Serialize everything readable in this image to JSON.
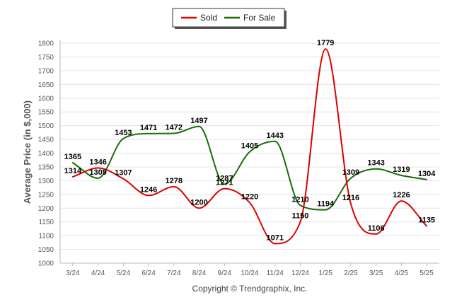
{
  "chart_data": {
    "type": "line",
    "categories": [
      "3/24",
      "4/24",
      "5/24",
      "6/24",
      "7/24",
      "8/24",
      "9/24",
      "10/24",
      "11/24",
      "12/24",
      "1/25",
      "2/25",
      "3/25",
      "4/25",
      "5/25"
    ],
    "series": [
      {
        "name": "Sold",
        "color": "#dd0000",
        "values": [
          1314,
          1346,
          1307,
          1246,
          1278,
          1200,
          1271,
          1220,
          1071,
          1150,
          1779,
          1216,
          1106,
          1226,
          1135
        ],
        "labels": [
          "1314",
          "1346",
          "1307",
          "1246",
          "1278",
          "1200",
          "1271",
          "1220",
          "1071",
          "1150",
          "1779",
          "1216",
          "1106",
          "1226",
          "1135"
        ]
      },
      {
        "name": "For Sale",
        "color": "#1a6b0a",
        "values": [
          1365,
          1309,
          1453,
          1471,
          1472,
          1497,
          1287,
          1405,
          1443,
          1210,
          1194,
          1309,
          1343,
          1319,
          1304
        ],
        "labels": [
          "1365",
          "1309",
          "1453",
          "1471",
          "1472",
          "1497",
          "1287",
          "1405",
          "1443",
          "1210",
          "1194",
          "1309",
          "1343",
          "1319",
          "1304"
        ]
      }
    ],
    "ylabel": "Average Price (in $,000)",
    "xlabel": "",
    "ylim": [
      1000,
      1800
    ],
    "yticks": [
      1000,
      1050,
      1100,
      1150,
      1200,
      1250,
      1300,
      1350,
      1400,
      1450,
      1500,
      1550,
      1600,
      1650,
      1700,
      1750,
      1800
    ],
    "grid": true,
    "legend_position": "top-center"
  },
  "footer": {
    "copyright": "Copyright © Trendgraphix, Inc."
  }
}
